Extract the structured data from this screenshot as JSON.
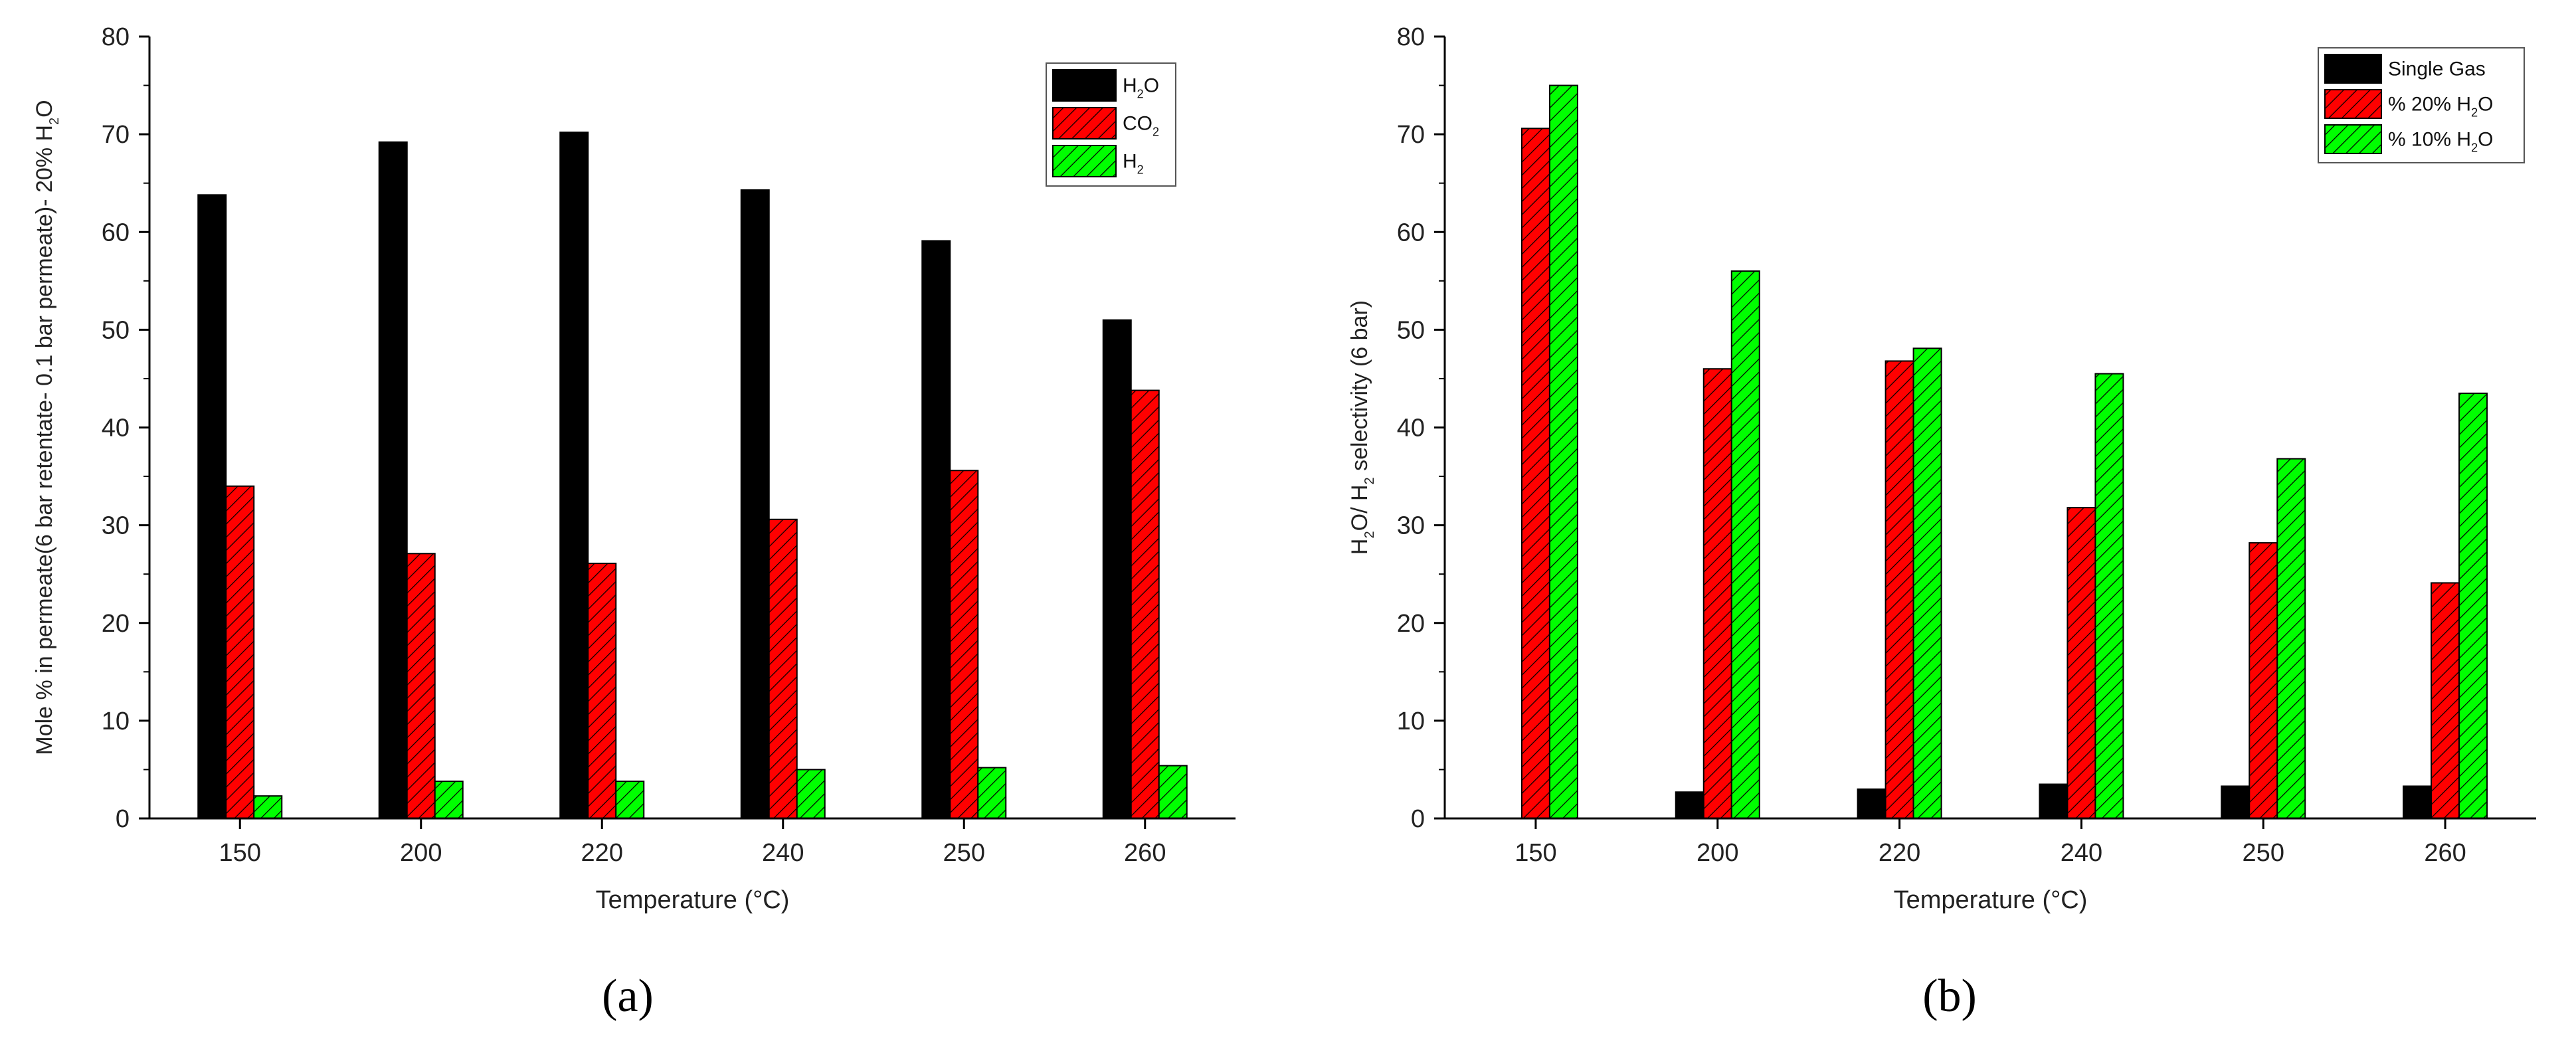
{
  "colors": {
    "h2o": "#000000",
    "co2": "#ff0000",
    "h2": "#00ff00",
    "single_gas": "#000000",
    "pct20": "#ff0000",
    "pct10": "#00ff00"
  },
  "chart_data": [
    {
      "type": "bar",
      "panel_label": "(a)",
      "categories": [
        "150",
        "200",
        "220",
        "240",
        "250",
        "260"
      ],
      "series": [
        {
          "name": "H₂O",
          "name_main": "H",
          "name_sub": "2",
          "name_tail": "O",
          "color": "#000000",
          "pattern": "none",
          "values": [
            63.8,
            69.2,
            70.2,
            64.3,
            59.1,
            51.0
          ]
        },
        {
          "name": "CO₂",
          "name_main": "CO",
          "name_sub": "2",
          "name_tail": "",
          "color": "#ff0000",
          "pattern": "hatch",
          "values": [
            34.0,
            27.1,
            26.1,
            30.6,
            35.6,
            43.8
          ]
        },
        {
          "name": "H₂",
          "name_main": "H",
          "name_sub": "2",
          "name_tail": "",
          "color": "#00ff00",
          "pattern": "hatch",
          "values": [
            2.3,
            3.8,
            3.8,
            5.0,
            5.2,
            5.4
          ]
        }
      ],
      "xlabel": "Temperature (°C)",
      "ylabel": "Mole % in permeate(6 bar retentate- 0.1 bar permeate)- 20% H₂O",
      "ylabel_main": "Mole % in permeate(6 bar retentate- 0.1 bar permeate)- 20% H",
      "ylabel_sub": "2",
      "ylabel_tail": "O",
      "ylim": [
        0,
        80
      ],
      "yticks": [
        0,
        10,
        20,
        30,
        40,
        50,
        60,
        70,
        80
      ],
      "grid": false,
      "legend_position": "top-right"
    },
    {
      "type": "bar",
      "panel_label": "(b)",
      "categories": [
        "150",
        "200",
        "220",
        "240",
        "250",
        "260"
      ],
      "series": [
        {
          "name": "Single Gas",
          "name_main": "Single Gas",
          "name_sub": "",
          "name_tail": "",
          "color": "#000000",
          "pattern": "none",
          "values": [
            null,
            2.7,
            3.0,
            3.5,
            3.3,
            3.3
          ]
        },
        {
          "name": "% 20% H₂O",
          "name_main": "% 20% H",
          "name_sub": "2",
          "name_tail": "O",
          "color": "#ff0000",
          "pattern": "hatch",
          "values": [
            70.6,
            46.0,
            46.8,
            31.8,
            28.2,
            24.1
          ]
        },
        {
          "name": "% 10% H₂O",
          "name_main": "% 10% H",
          "name_sub": "2",
          "name_tail": "O",
          "color": "#00ff00",
          "pattern": "hatch",
          "values": [
            75.0,
            56.0,
            48.1,
            45.5,
            36.8,
            43.5
          ]
        }
      ],
      "xlabel": "Temperature (°C)",
      "ylabel": "H₂O/ H₂ selectivity (6 bar)",
      "ylabel_parts": [
        {
          "t": "H",
          "sub": false
        },
        {
          "t": "2",
          "sub": true
        },
        {
          "t": "O/ H",
          "sub": false
        },
        {
          "t": "2",
          "sub": true
        },
        {
          "t": " selectivity (6 bar)",
          "sub": false
        }
      ],
      "ylim": [
        0,
        80
      ],
      "yticks": [
        0,
        10,
        20,
        30,
        40,
        50,
        60,
        70,
        80
      ],
      "grid": false,
      "legend_position": "top-right"
    }
  ]
}
